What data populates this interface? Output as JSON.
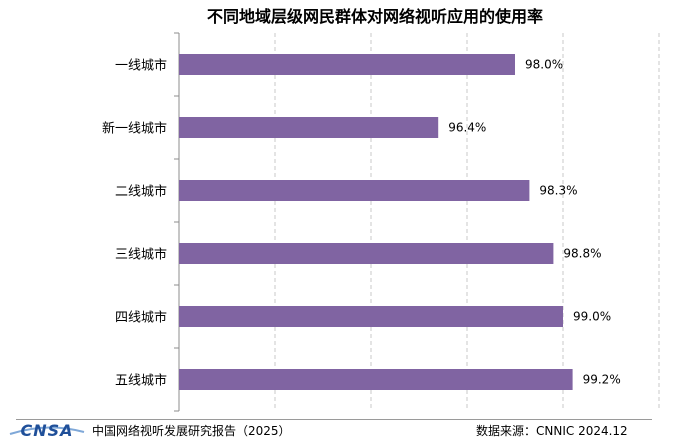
{
  "chart_data": {
    "type": "bar",
    "orientation": "horizontal",
    "title": "不同地域层级网民群体对网络视听应用的使用率",
    "categories": [
      "一线城市",
      "新一线城市",
      "二线城市",
      "三线城市",
      "四线城市",
      "五线城市"
    ],
    "values": [
      98.0,
      96.4,
      98.3,
      98.8,
      99.0,
      99.2
    ],
    "data_labels": [
      "98.0%",
      "96.4%",
      "98.3%",
      "98.8%",
      "99.0%",
      "99.2%"
    ],
    "xlim": [
      91,
      101
    ],
    "gridlines": "vertical dashed",
    "bar_color": "#8064a2"
  },
  "footer": {
    "logo_text": "CNSA",
    "report": "中国网络视听发展研究报告（2025）",
    "source": "数据来源：CNNIC  2024.12"
  }
}
